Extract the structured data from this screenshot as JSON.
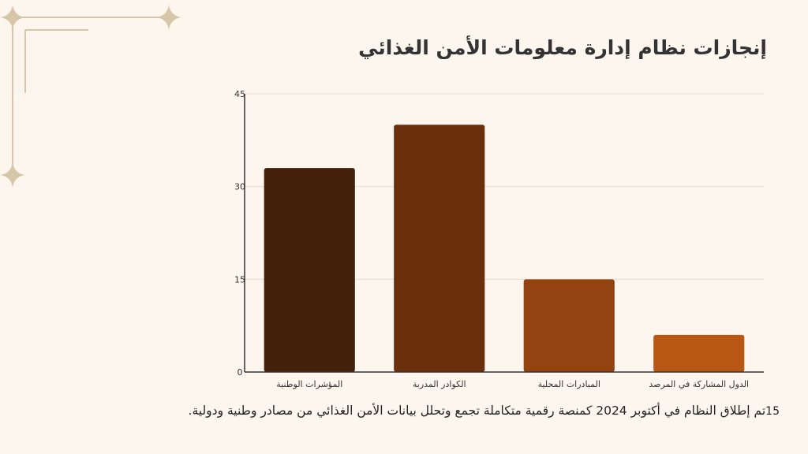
{
  "slide": {
    "title": "إنجازات نظام إدارة معلومات الأمن الغذائي",
    "page_number": "15",
    "caption": "تم إطلاق النظام في أكتوبر 2024 كمنصة رقمية متكاملة تجمع وتحلل بيانات الأمن الغذائي من مصادر وطنية ودولية."
  },
  "colors": {
    "background": "#fdf6ee",
    "decor": "#d8c6a8",
    "axis": "#333333",
    "grid": "#e6dccf"
  },
  "chart_data": {
    "type": "bar",
    "title": "",
    "xlabel": "",
    "ylabel": "",
    "categories": [
      "المؤشرات الوطنية",
      "الكوادر المدربة",
      "المبادرات المحلية",
      "الدول المشاركة في المرصد"
    ],
    "values": [
      33,
      40,
      15,
      6
    ],
    "bar_colors": [
      "#45200a",
      "#6b300b",
      "#93430f",
      "#b85614"
    ],
    "ylim": [
      0,
      45
    ],
    "yticks": [
      0,
      15,
      30,
      45
    ],
    "grid": true,
    "legend": "none"
  }
}
